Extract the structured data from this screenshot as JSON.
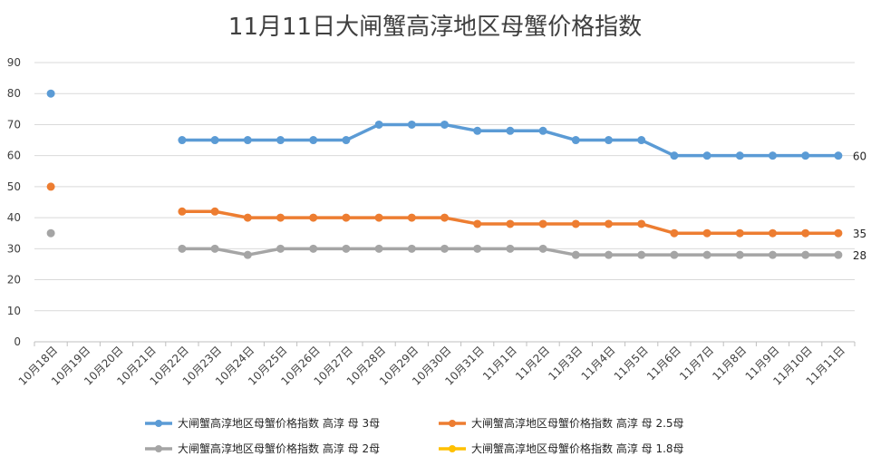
{
  "chart_data": {
    "type": "line",
    "title": "11月11日大闸蟹高淳地区母蟹价格指数",
    "xlabel": "",
    "ylabel": "",
    "ylim": [
      0,
      90
    ],
    "y_ticks": [
      0,
      10,
      20,
      30,
      40,
      50,
      60,
      70,
      80,
      90
    ],
    "grid": true,
    "legend_position": "bottom",
    "categories": [
      "10月18日",
      "10月19日",
      "10月20日",
      "10月21日",
      "10月22日",
      "10月23日",
      "10月24日",
      "10月25日",
      "10月26日",
      "10月27日",
      "10月28日",
      "10月29日",
      "10月30日",
      "10月31日",
      "11月1日",
      "11月2日",
      "11月3日",
      "11月4日",
      "11月5日",
      "11月6日",
      "11月7日",
      "11月8日",
      "11月9日",
      "11月10日",
      "11月11日"
    ],
    "series": [
      {
        "name": "大闸蟹高淳地区母蟹价格指数 高淳 母 3母",
        "color": "#5B9BD5",
        "values": [
          80,
          null,
          null,
          null,
          65,
          65,
          65,
          65,
          65,
          65,
          70,
          70,
          70,
          68,
          68,
          68,
          65,
          65,
          65,
          60,
          60,
          60,
          60,
          60,
          60
        ],
        "end_label": "60"
      },
      {
        "name": "大闸蟹高淳地区母蟹价格指数 高淳 母 2.5母",
        "color": "#ED7D31",
        "values": [
          50,
          null,
          null,
          null,
          42,
          42,
          40,
          40,
          40,
          40,
          40,
          40,
          40,
          38,
          38,
          38,
          38,
          38,
          38,
          35,
          35,
          35,
          35,
          35,
          35
        ],
        "end_label": "35"
      },
      {
        "name": "大闸蟹高淳地区母蟹价格指数 高淳 母 2母",
        "color": "#A5A5A5",
        "values": [
          35,
          null,
          null,
          null,
          30,
          30,
          28,
          30,
          30,
          30,
          30,
          30,
          30,
          30,
          30,
          30,
          28,
          28,
          28,
          28,
          28,
          28,
          28,
          28,
          28
        ],
        "end_label": "28"
      },
      {
        "name": "大闸蟹高淳地区母蟹价格指数 高淳 母 1.8母",
        "color": "#FFC000",
        "values": [
          null,
          null,
          null,
          null,
          null,
          null,
          null,
          null,
          null,
          null,
          null,
          null,
          null,
          null,
          null,
          null,
          null,
          null,
          null,
          null,
          null,
          null,
          null,
          null,
          null
        ],
        "end_label": ""
      }
    ]
  }
}
